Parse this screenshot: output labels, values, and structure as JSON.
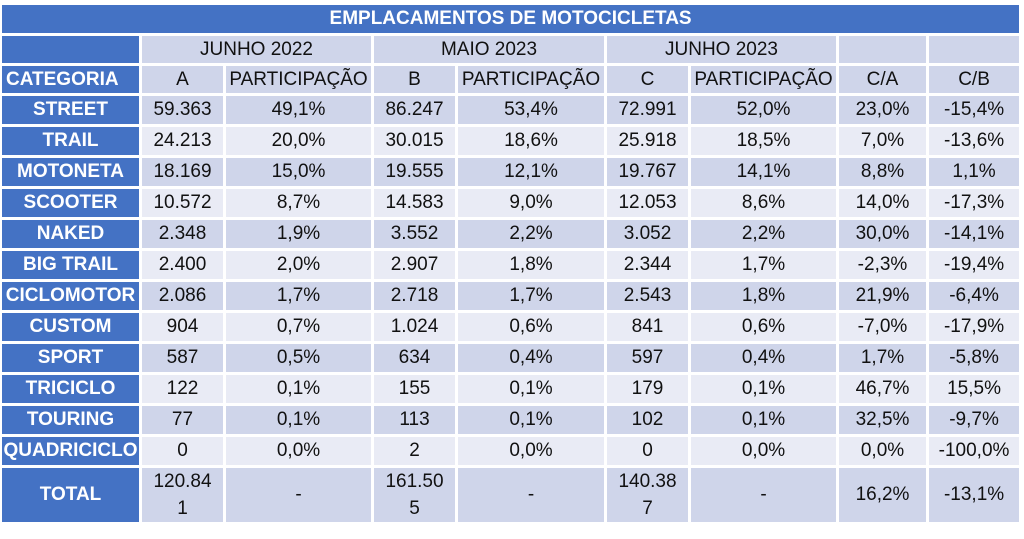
{
  "title": "EMPLACAMENTOS DE MOTOCICLETAS",
  "periods": [
    "JUNHO 2022",
    "MAIO 2023",
    "JUNHO 2023"
  ],
  "columns": [
    "CATEGORIA",
    "A",
    "PARTICIPAÇÃO",
    "B",
    "PARTICIPAÇÃO",
    "C",
    "PARTICIPAÇÃO",
    "C/A",
    "C/B"
  ],
  "rows": [
    {
      "cat": "STREET",
      "a": "59.363",
      "pa": "49,1%",
      "b": "86.247",
      "pb": "53,4%",
      "c": "72.991",
      "pc": "52,0%",
      "ca": "23,0%",
      "cb": "-15,4%"
    },
    {
      "cat": "TRAIL",
      "a": "24.213",
      "pa": "20,0%",
      "b": "30.015",
      "pb": "18,6%",
      "c": "25.918",
      "pc": "18,5%",
      "ca": "7,0%",
      "cb": "-13,6%"
    },
    {
      "cat": "MOTONETA",
      "a": "18.169",
      "pa": "15,0%",
      "b": "19.555",
      "pb": "12,1%",
      "c": "19.767",
      "pc": "14,1%",
      "ca": "8,8%",
      "cb": "1,1%"
    },
    {
      "cat": "SCOOTER",
      "a": "10.572",
      "pa": "8,7%",
      "b": "14.583",
      "pb": "9,0%",
      "c": "12.053",
      "pc": "8,6%",
      "ca": "14,0%",
      "cb": "-17,3%"
    },
    {
      "cat": "NAKED",
      "a": "2.348",
      "pa": "1,9%",
      "b": "3.552",
      "pb": "2,2%",
      "c": "3.052",
      "pc": "2,2%",
      "ca": "30,0%",
      "cb": "-14,1%"
    },
    {
      "cat": "BIG TRAIL",
      "a": "2.400",
      "pa": "2,0%",
      "b": "2.907",
      "pb": "1,8%",
      "c": "2.344",
      "pc": "1,7%",
      "ca": "-2,3%",
      "cb": "-19,4%"
    },
    {
      "cat": "CICLOMOTOR",
      "a": "2.086",
      "pa": "1,7%",
      "b": "2.718",
      "pb": "1,7%",
      "c": "2.543",
      "pc": "1,8%",
      "ca": "21,9%",
      "cb": "-6,4%"
    },
    {
      "cat": "CUSTOM",
      "a": "904",
      "pa": "0,7%",
      "b": "1.024",
      "pb": "0,6%",
      "c": "841",
      "pc": "0,6%",
      "ca": "-7,0%",
      "cb": "-17,9%"
    },
    {
      "cat": "SPORT",
      "a": "587",
      "pa": "0,5%",
      "b": "634",
      "pb": "0,4%",
      "c": "597",
      "pc": "0,4%",
      "ca": "1,7%",
      "cb": "-5,8%"
    },
    {
      "cat": "TRICICLO",
      "a": "122",
      "pa": "0,1%",
      "b": "155",
      "pb": "0,1%",
      "c": "179",
      "pc": "0,1%",
      "ca": "46,7%",
      "cb": "15,5%"
    },
    {
      "cat": "TOURING",
      "a": "77",
      "pa": "0,1%",
      "b": "113",
      "pb": "0,1%",
      "c": "102",
      "pc": "0,1%",
      "ca": "32,5%",
      "cb": "-9,7%"
    },
    {
      "cat": "QUADRICICLO",
      "a": "0",
      "pa": "0,0%",
      "b": "2",
      "pb": "0,0%",
      "c": "0",
      "pc": "0,0%",
      "ca": "0,0%",
      "cb": "-100,0%"
    }
  ],
  "total": {
    "cat": "TOTAL",
    "a_line1": "120.84",
    "a_line2": "1",
    "pa": "-",
    "b_line1": "161.50",
    "b_line2": "5",
    "pb": "-",
    "c_line1": "140.38",
    "c_line2": "7",
    "pc": "-",
    "ca": "16,2%",
    "cb": "-13,1%"
  }
}
